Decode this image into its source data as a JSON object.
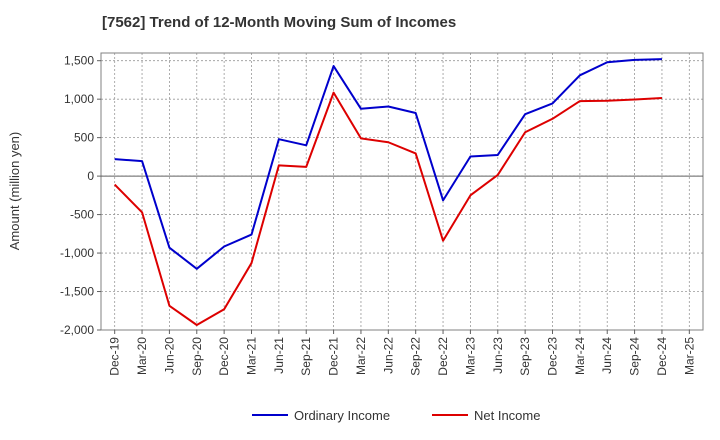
{
  "chart_data": {
    "type": "line",
    "title": "[7562]  Trend of 12-Month Moving Sum of Incomes",
    "xlabel": "",
    "ylabel": "Amount (million yen)",
    "ylim": [
      -2000,
      1600
    ],
    "yticks": [
      1500,
      1000,
      500,
      0,
      -500,
      -1000,
      -1500,
      -2000
    ],
    "ytick_labels": [
      "1,500",
      "1,000",
      "500",
      "0",
      "-500",
      "-1,000",
      "-1,500",
      "-2,000"
    ],
    "grid": true,
    "legend_position": "bottom-center",
    "categories": [
      "Dec-19",
      "Mar-20",
      "Jun-20",
      "Sep-20",
      "Dec-20",
      "Mar-21",
      "Jun-21",
      "Sep-21",
      "Dec-21",
      "Mar-22",
      "Jun-22",
      "Sep-22",
      "Dec-22",
      "Mar-23",
      "Jun-23",
      "Sep-23",
      "Dec-23",
      "Mar-24",
      "Jun-24",
      "Sep-24",
      "Dec-24",
      "Mar-25"
    ],
    "series": [
      {
        "name": "Ordinary Income",
        "color": "#0000cc",
        "values": [
          220,
          195,
          -930,
          -1205,
          -915,
          -760,
          480,
          400,
          1430,
          875,
          905,
          820,
          -315,
          255,
          275,
          805,
          945,
          1310,
          1480,
          1510,
          1520,
          null
        ]
      },
      {
        "name": "Net Income",
        "color": "#dd0000",
        "values": [
          -110,
          -470,
          -1685,
          -1935,
          -1730,
          -1130,
          140,
          120,
          1085,
          490,
          440,
          295,
          -840,
          -250,
          15,
          570,
          745,
          975,
          980,
          995,
          1015,
          null
        ]
      }
    ]
  }
}
